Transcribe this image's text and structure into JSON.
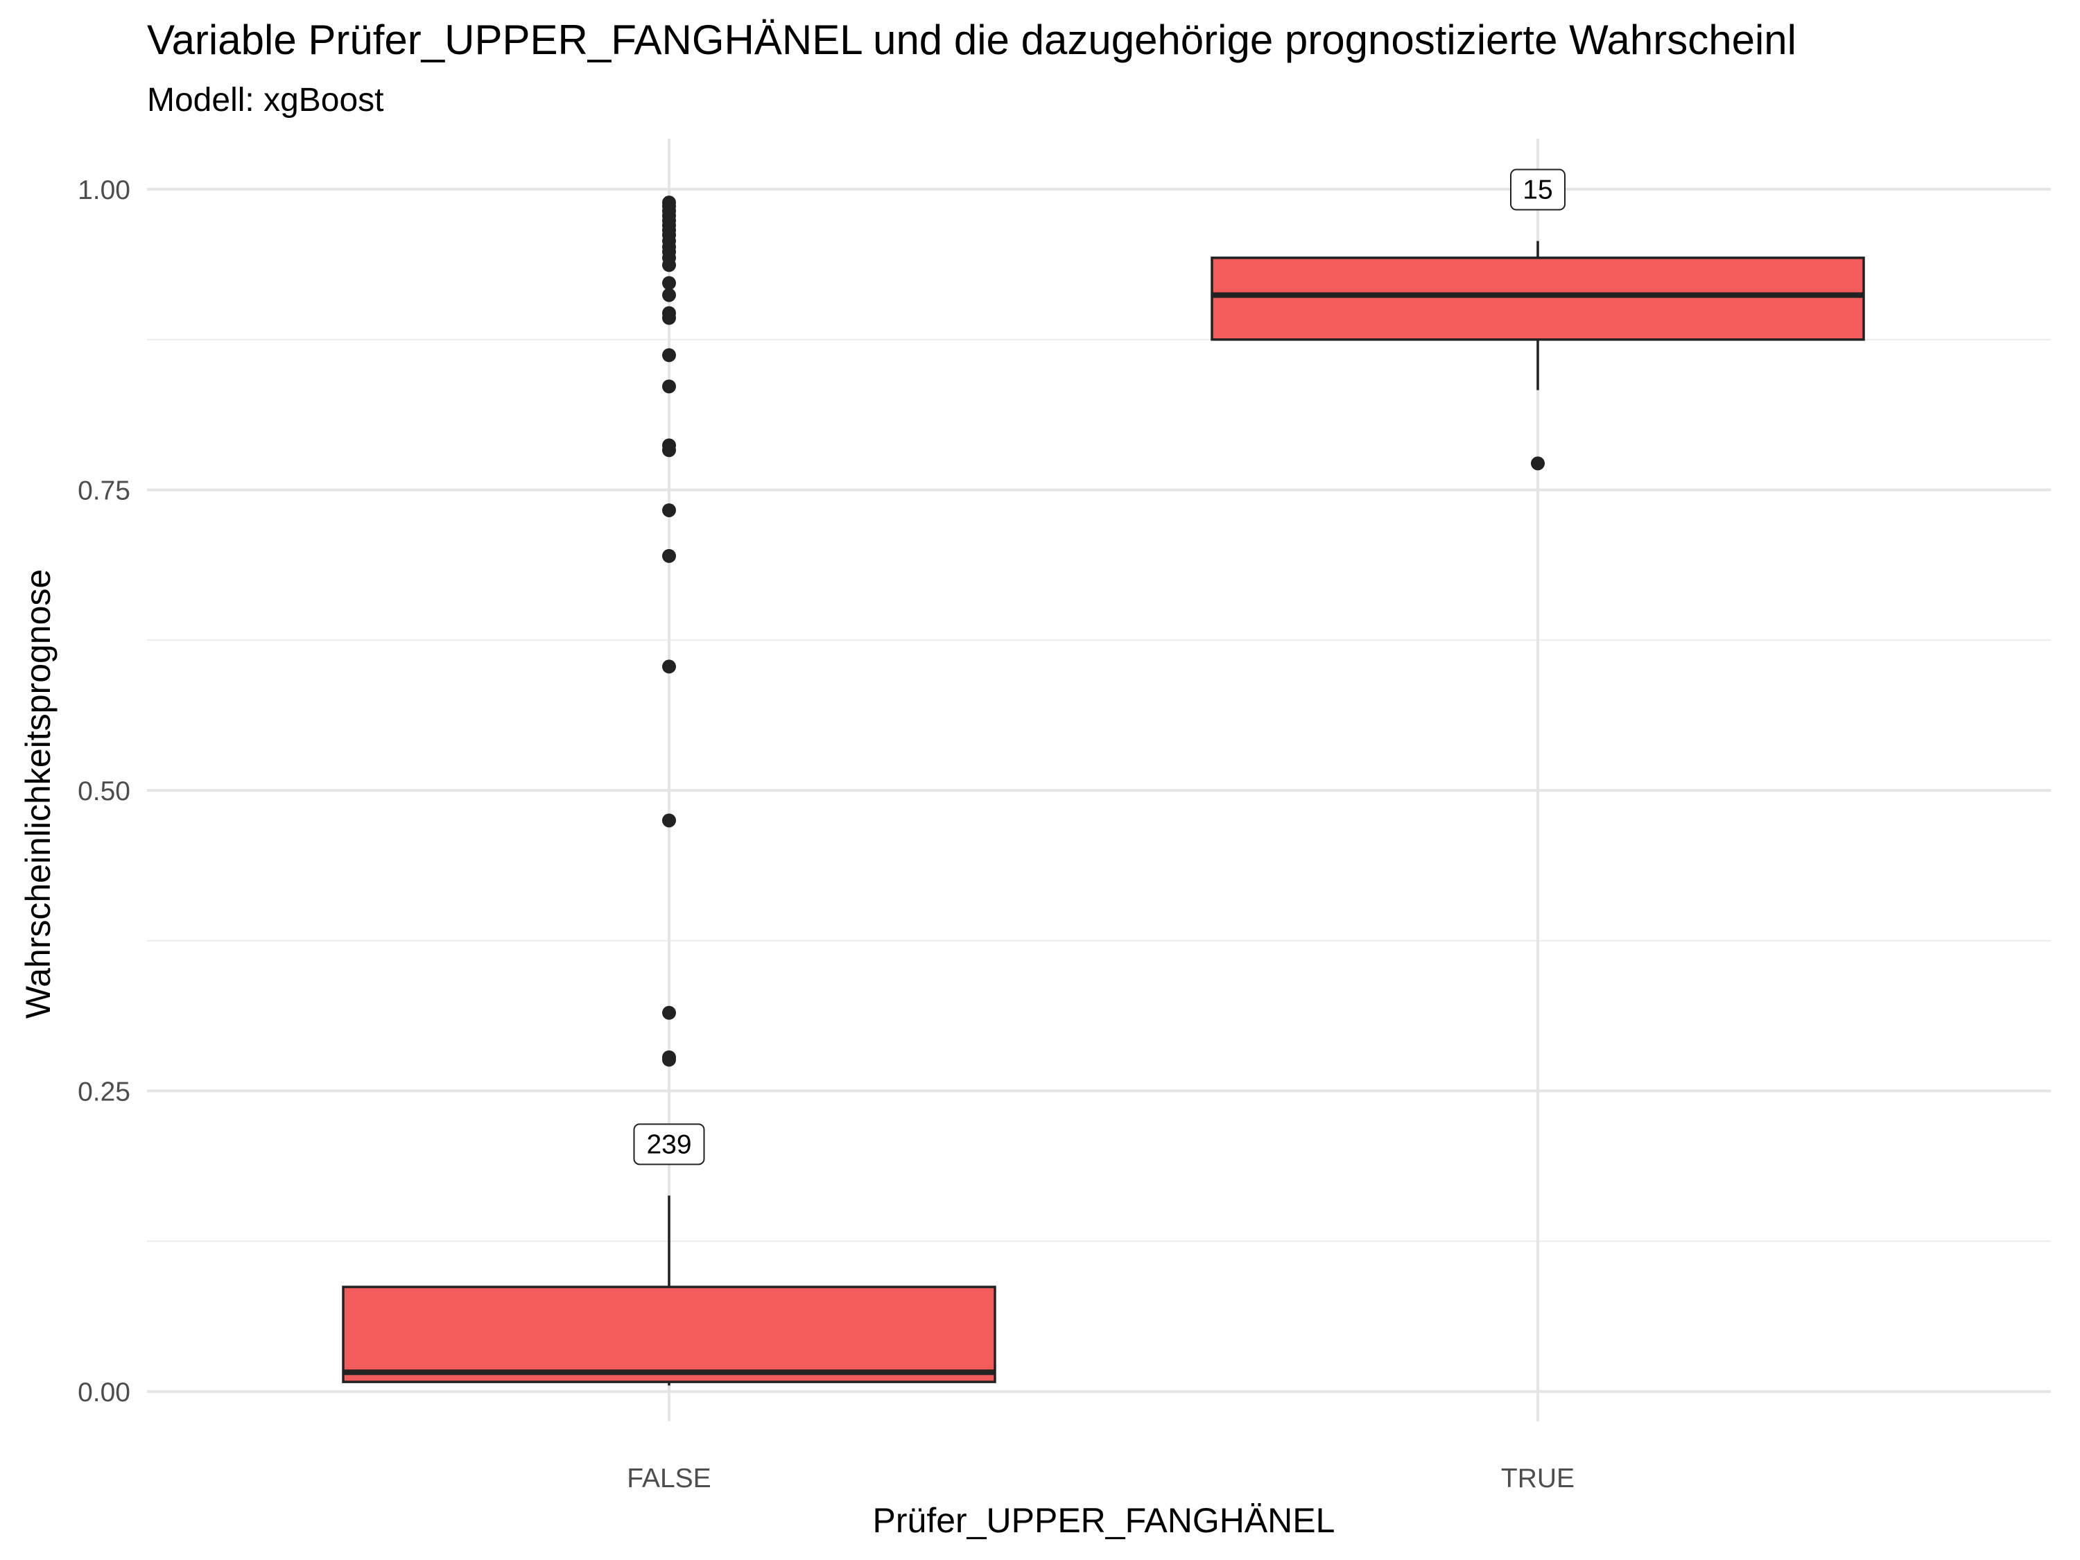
{
  "chart_data": {
    "type": "boxplot",
    "title": "Variable Prüfer_UPPER_FANGHÄNEL und die dazugehörige prognostizierte Wahrscheinl",
    "subtitle": "Modell: xgBoost",
    "xlabel": "Prüfer_UPPER_FANGHÄNEL",
    "ylabel": "Wahrscheinlichkeitsprognose",
    "ylim": [
      -0.025,
      1.045
    ],
    "yticks": [
      0.0,
      0.25,
      0.5,
      0.75,
      1.0
    ],
    "ytick_labels": [
      "0.00",
      "0.25",
      "0.50",
      "0.75",
      "1.00"
    ],
    "grid": true,
    "box_color": "#F25C5A",
    "categories": [
      "FALSE",
      "TRUE"
    ],
    "boxes": [
      {
        "category": "FALSE",
        "count_label": "239",
        "min": 0.005,
        "q1": 0.008,
        "median": 0.016,
        "q3": 0.087,
        "max": 0.163,
        "outliers": [
          0.276,
          0.278,
          0.315,
          0.475,
          0.603,
          0.695,
          0.733,
          0.783,
          0.787,
          0.836,
          0.862,
          0.893,
          0.897,
          0.912,
          0.922,
          0.937,
          0.943,
          0.948,
          0.952,
          0.957,
          0.962,
          0.966,
          0.97,
          0.974,
          0.978,
          0.982,
          0.986,
          0.989
        ]
      },
      {
        "category": "TRUE",
        "count_label": "15",
        "min": 0.833,
        "q1": 0.875,
        "median": 0.912,
        "q3": 0.943,
        "max": 0.957,
        "outliers": [
          0.772
        ]
      }
    ]
  }
}
